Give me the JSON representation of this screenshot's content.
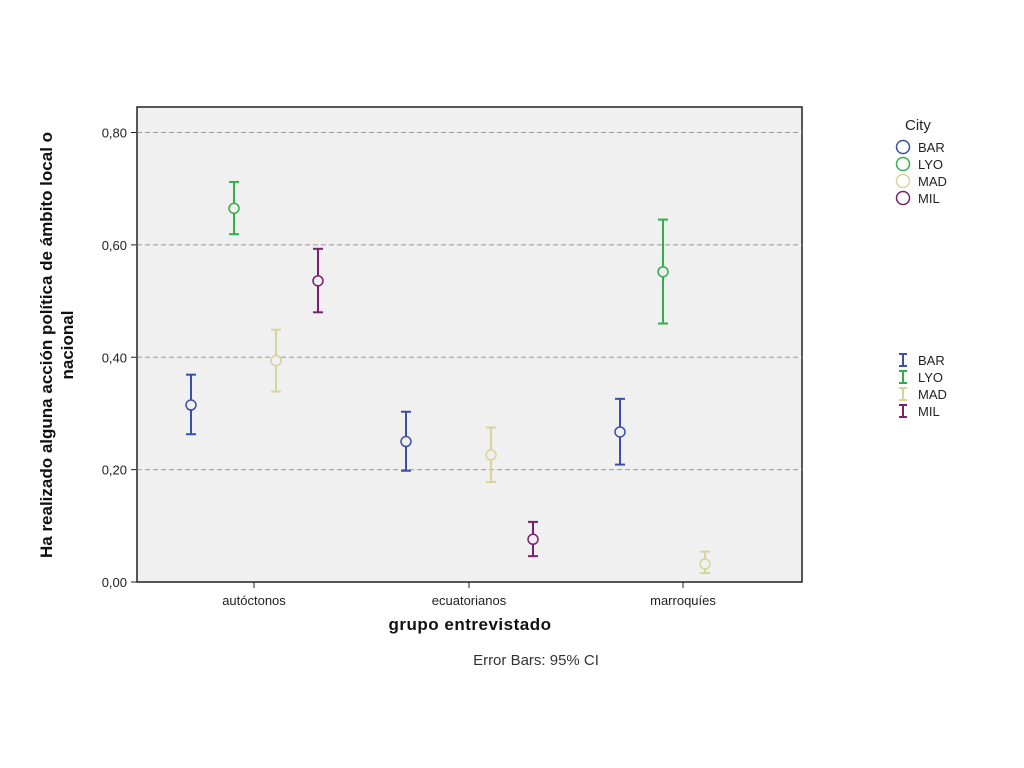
{
  "chart_data": {
    "type": "scatter",
    "subtype": "error-bar",
    "xlabel": "grupo entrevistado",
    "ylabel_lines": [
      "Ha realizado alguna acción política de ámbito local o",
      "nacional"
    ],
    "categories": [
      "autóctonos",
      "ecuatorianos",
      "marroquíes"
    ],
    "ylim": [
      0,
      0.85
    ],
    "yticks": [
      0.0,
      0.2,
      0.4,
      0.6,
      0.8
    ],
    "ytick_labels": [
      "0,00",
      "0,20",
      "0,40",
      "0,60",
      "0,80"
    ],
    "grid": "horizontal dashed",
    "legend_title": "City",
    "legend_placement": "right",
    "note": "Error Bars: 95% CI",
    "series": [
      {
        "name": "BAR",
        "color": "#3a4fa8",
        "values": [
          0.315,
          0.25,
          0.267
        ],
        "lower": [
          0.263,
          0.198,
          0.209
        ],
        "upper": [
          0.369,
          0.303,
          0.326
        ]
      },
      {
        "name": "LYO",
        "color": "#2fb04a",
        "values": [
          0.665,
          null,
          0.552
        ],
        "lower": [
          0.619,
          null,
          0.46
        ],
        "upper": [
          0.712,
          null,
          0.645
        ]
      },
      {
        "name": "MAD",
        "color": "#d8d39b",
        "values": [
          0.394,
          0.226,
          0.032
        ],
        "lower": [
          0.339,
          0.178,
          0.016
        ],
        "upper": [
          0.449,
          0.275,
          0.054
        ]
      },
      {
        "name": "MIL",
        "color": "#7b1f6e",
        "values": [
          0.536,
          0.076,
          null
        ],
        "lower": [
          0.48,
          0.046,
          null
        ],
        "upper": [
          0.593,
          0.107,
          null
        ]
      }
    ]
  }
}
